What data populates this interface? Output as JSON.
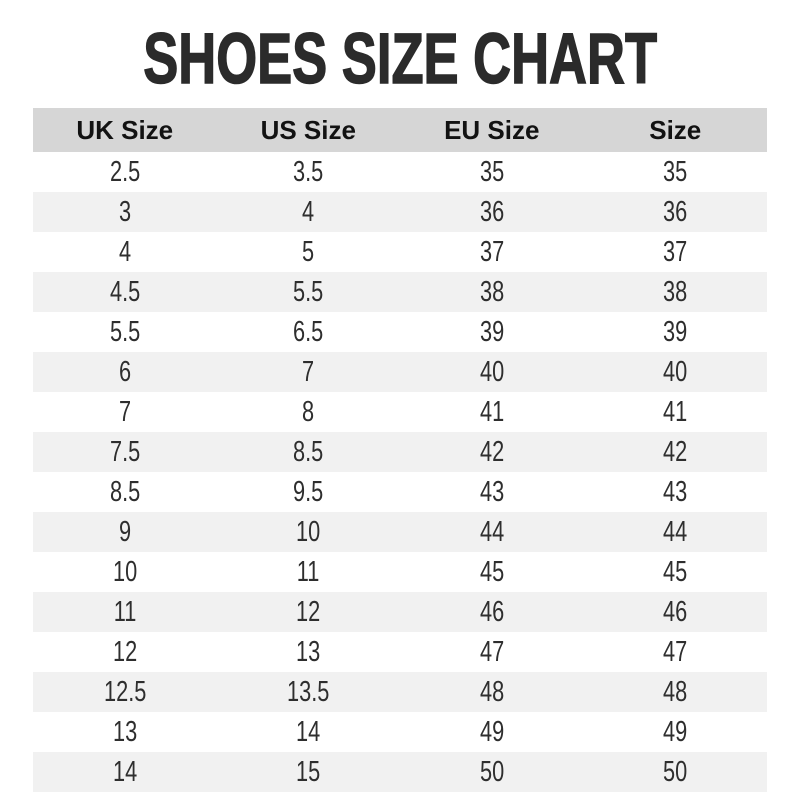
{
  "page": {
    "title": "SHOES SIZE CHART"
  },
  "colors": {
    "header_bg": "#d6d6d6",
    "stripe_bg": "#f1f1f1",
    "row_bg": "#ffffff",
    "title_color": "#2b2b2b",
    "cell_text_color": "#2e2e2e",
    "header_text_color": "#121212"
  },
  "chart_data": {
    "type": "table",
    "title": "SHOES SIZE CHART",
    "columns": [
      "UK Size",
      "US Size",
      "EU Size",
      "Size"
    ],
    "rows": [
      [
        "2.5",
        "3.5",
        "35",
        "35"
      ],
      [
        "3",
        "4",
        "36",
        "36"
      ],
      [
        "4",
        "5",
        "37",
        "37"
      ],
      [
        "4.5",
        "5.5",
        "38",
        "38"
      ],
      [
        "5.5",
        "6.5",
        "39",
        "39"
      ],
      [
        "6",
        "7",
        "40",
        "40"
      ],
      [
        "7",
        "8",
        "41",
        "41"
      ],
      [
        "7.5",
        "8.5",
        "42",
        "42"
      ],
      [
        "8.5",
        "9.5",
        "43",
        "43"
      ],
      [
        "9",
        "10",
        "44",
        "44"
      ],
      [
        "10",
        "11",
        "45",
        "45"
      ],
      [
        "11",
        "12",
        "46",
        "46"
      ],
      [
        "12",
        "13",
        "47",
        "47"
      ],
      [
        "12.5",
        "13.5",
        "48",
        "48"
      ],
      [
        "13",
        "14",
        "49",
        "49"
      ],
      [
        "14",
        "15",
        "50",
        "50"
      ]
    ],
    "layout": {
      "header_row": true,
      "zebra_striping": true,
      "borders": false,
      "text_align": "center"
    }
  }
}
